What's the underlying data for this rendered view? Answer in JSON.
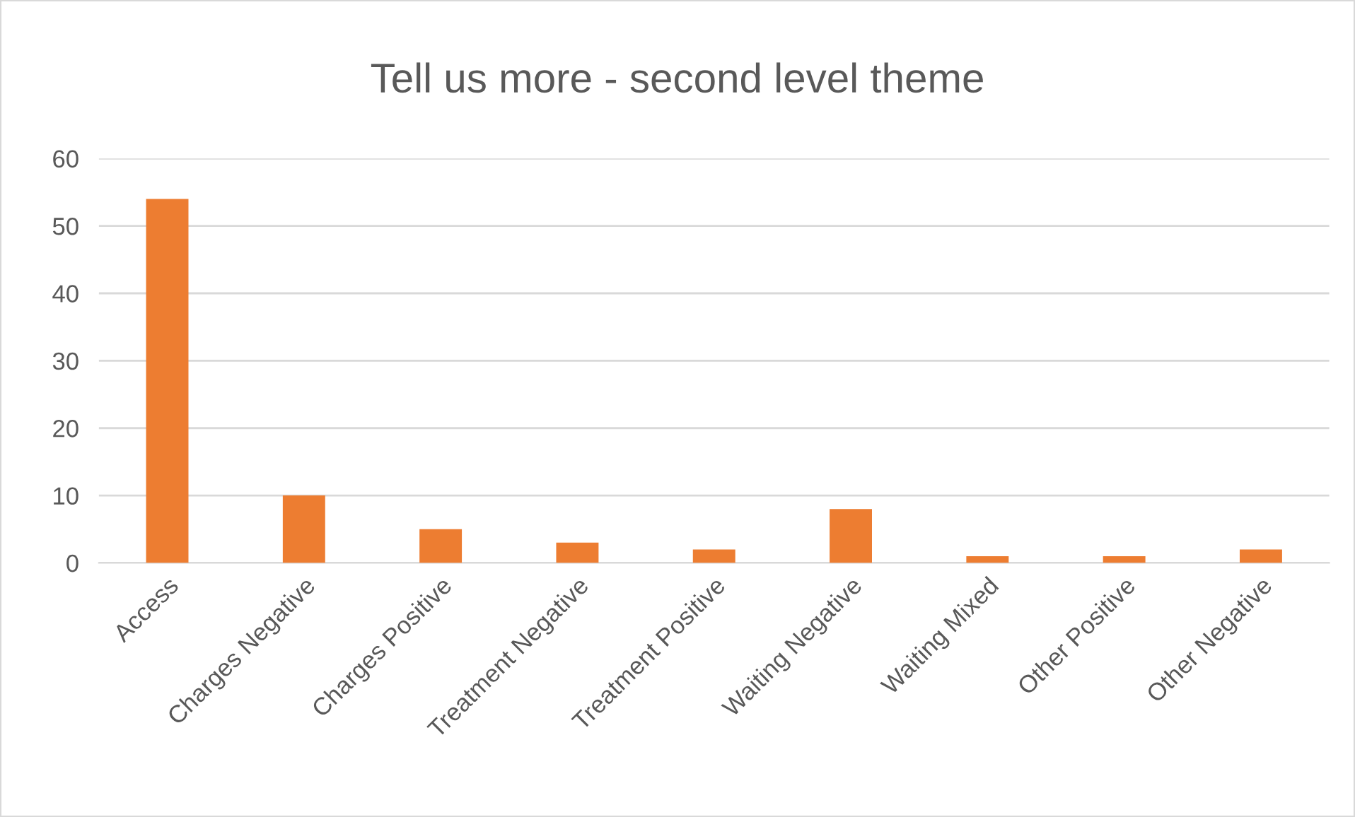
{
  "chart_data": {
    "type": "bar",
    "title": "Tell us more - second level theme",
    "categories": [
      "Access",
      "Charges Negative",
      "Charges Positive",
      "Treatment Negative",
      "Treatment Positive",
      "Waiting Negative",
      "Waiting Mixed",
      "Other Positive",
      "Other Negative"
    ],
    "values": [
      54,
      10,
      5,
      3,
      2,
      8,
      1,
      1,
      2
    ],
    "color": "#ed7d31",
    "ylim": [
      0,
      60
    ],
    "yticks": [
      0,
      10,
      20,
      30,
      40,
      50,
      60
    ],
    "grid": "y"
  }
}
